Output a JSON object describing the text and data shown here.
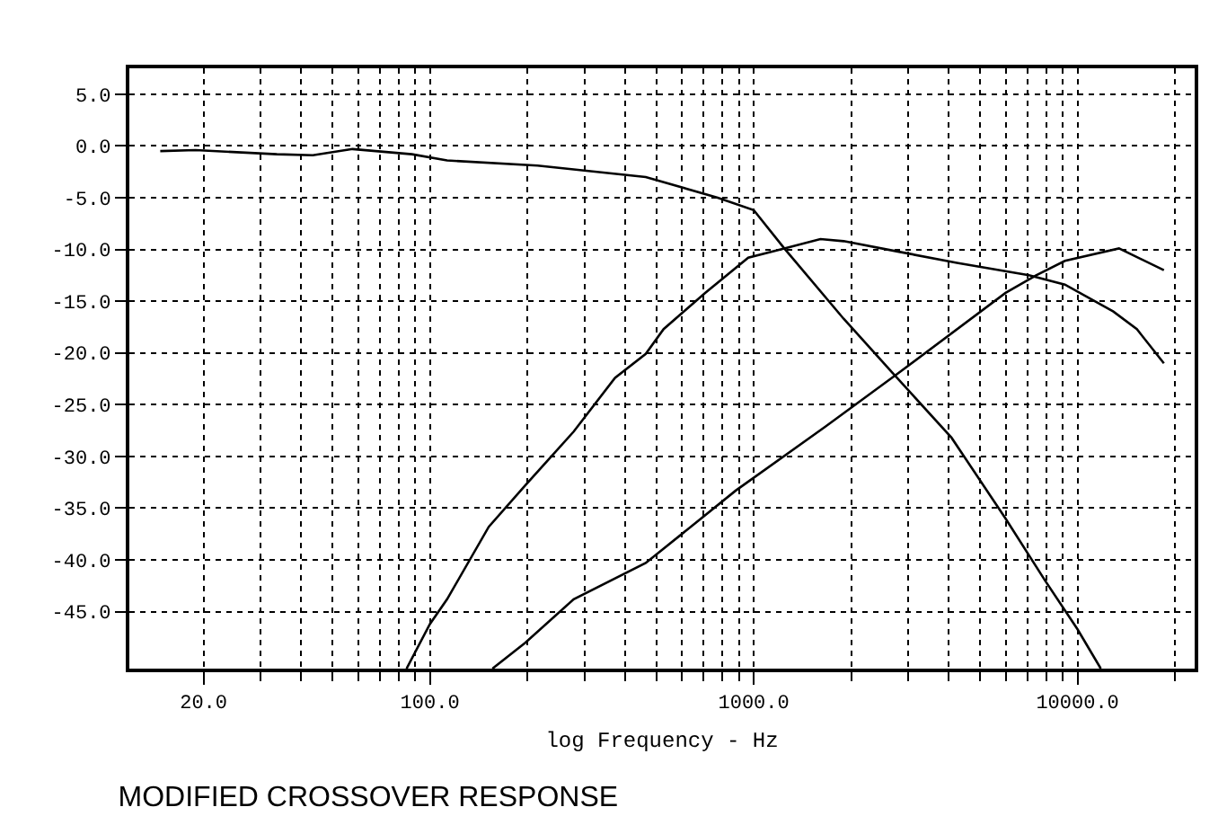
{
  "chart_data": {
    "type": "line",
    "title": "MODIFIED CROSSOVER RESPONSE",
    "xlabel": "log Frequency - Hz",
    "log": "x",
    "grid": true,
    "marker": "none",
    "line_style": "solid",
    "xlim": [
      11.8,
      23000
    ],
    "xticks": [
      {
        "value": 20,
        "label": "20.0"
      },
      {
        "value": 100,
        "label": "100.0"
      },
      {
        "value": 1000,
        "label": "1000.0"
      },
      {
        "value": 10000,
        "label": "10000.0"
      }
    ],
    "ylim": [
      -50.5,
      7.5
    ],
    "yticks": [
      {
        "value": 5,
        "label": "5.0"
      },
      {
        "value": 0,
        "label": "0.0"
      },
      {
        "value": -5,
        "label": "-5.0"
      },
      {
        "value": -10,
        "label": "-10.0"
      },
      {
        "value": -15,
        "label": "-15.0"
      },
      {
        "value": -20,
        "label": "-20.0"
      },
      {
        "value": -25,
        "label": "-25.0"
      },
      {
        "value": -30,
        "label": "-30.0"
      },
      {
        "value": -35,
        "label": "-35.0"
      },
      {
        "value": -40,
        "label": "-40.0"
      },
      {
        "value": -45,
        "label": "-45.0"
      }
    ],
    "series": [
      {
        "color": "#000000",
        "x": [
          14.7,
          18.9,
          33.7,
          43.5,
          57.7,
          88,
          113,
          215,
          464,
          774,
          1000,
          1243,
          1896,
          2679,
          4084,
          5995,
          7943,
          10000,
          11800
        ],
        "values": [
          -0.5,
          -0.4,
          -0.8,
          -0.9,
          -0.3,
          -0.8,
          -1.4,
          -1.9,
          -3.0,
          -5.0,
          -6.2,
          -9.9,
          -16.7,
          -21.9,
          -28.2,
          -36.0,
          -42.0,
          -46.7,
          -50.5
        ]
      },
      {
        "color": "#000000",
        "x": [
          84.7,
          100,
          113,
          152,
          197,
          278,
          373,
          464,
          527,
          708,
          962,
          1243,
          1607,
          1896,
          2783,
          4242,
          7079,
          9141,
          12900,
          15250,
          18480
        ],
        "values": [
          -50.5,
          -46.2,
          -43.8,
          -36.8,
          -32.8,
          -27.6,
          -22.4,
          -20.1,
          -17.7,
          -14.2,
          -10.8,
          -9.9,
          -9.0,
          -9.2,
          -10.2,
          -11.3,
          -12.5,
          -13.4,
          -16.0,
          -17.7,
          -21.0
        ]
      },
      {
        "color": "#000000",
        "x": [
          156,
          197,
          278,
          464,
          880,
          1668,
          2783,
          5995,
          7450,
          9141,
          13430,
          18480
        ],
        "values": [
          -50.5,
          -48.0,
          -43.8,
          -40.3,
          -33.3,
          -27.1,
          -22.0,
          -14.2,
          -12.5,
          -11.1,
          -9.9,
          -12.0
        ]
      }
    ]
  }
}
